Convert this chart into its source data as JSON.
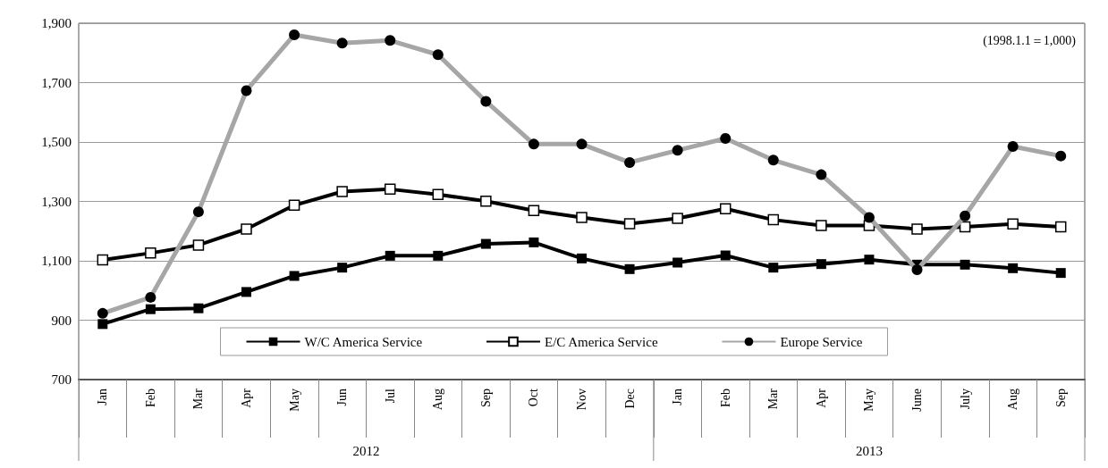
{
  "chart_data": {
    "type": "line",
    "categories": [
      "Jan",
      "Feb",
      "Mar",
      "Apr",
      "May",
      "Jun",
      "Jul",
      "Aug",
      "Sep",
      "Oct",
      "Nov",
      "Dec",
      "Jan",
      "Feb",
      "Mar",
      "Apr",
      "May",
      "June",
      "July",
      "Aug",
      "Sep"
    ],
    "series": [
      {
        "name": "W/C America Service",
        "color": "#000000",
        "marker": "square",
        "values": [
          887,
          937,
          940,
          995,
          1049,
          1077,
          1117,
          1117,
          1157,
          1162,
          1108,
          1072,
          1094,
          1118,
          1077,
          1089,
          1104,
          1087,
          1087,
          1075,
          1059
        ]
      },
      {
        "name": "E/C America Service",
        "color": "#000000",
        "marker": "square",
        "values": [
          1103,
          1126,
          1153,
          1207,
          1287,
          1333,
          1341,
          1323,
          1301,
          1269,
          1246,
          1225,
          1243,
          1275,
          1238,
          1219,
          1219,
          1207,
          1214,
          1224,
          1214
        ]
      },
      {
        "name": "Europe Service",
        "color": "#a6a6a6",
        "marker": "circle",
        "values": [
          923,
          977,
          1265,
          1673,
          1861,
          1833,
          1842,
          1794,
          1637,
          1493,
          1493,
          1431,
          1472,
          1512,
          1439,
          1390,
          1246,
          1070,
          1251,
          1485,
          1453
        ]
      }
    ],
    "ylim": [
      700,
      1900
    ],
    "yticks": [
      {
        "value": 700,
        "label": "700"
      },
      {
        "value": 900,
        "label": "900"
      },
      {
        "value": 1100,
        "label": "1,100"
      },
      {
        "value": 1300,
        "label": "1,300"
      },
      {
        "value": 1500,
        "label": "1,500"
      },
      {
        "value": 1700,
        "label": "1,700"
      },
      {
        "value": 1900,
        "label": "1,900"
      }
    ],
    "grid": "y",
    "legend": "bottom",
    "annotations": [
      "(1998.1.1＝1,000)",
      "2012",
      "2013"
    ]
  }
}
